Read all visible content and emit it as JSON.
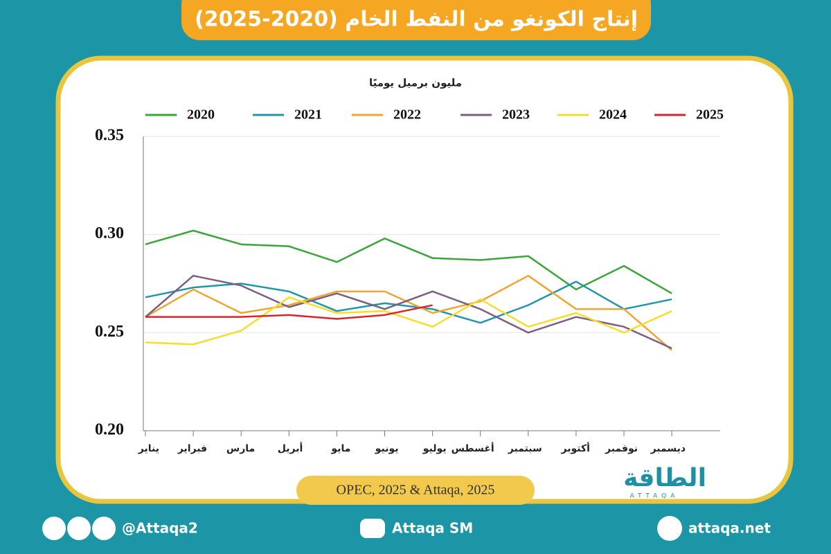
{
  "chart_data": {
    "type": "line",
    "title": "إنتاج الكونغو من النفط الخام (2020-2025)",
    "y_label": "مليون برميل يوميًا",
    "source": "OPEC, 2025 & Attaqa, 2025",
    "categories": [
      "يناير",
      "فبراير",
      "مارس",
      "أبريل",
      "مايو",
      "يونيو",
      "يوليو",
      "أغسطس",
      "سبتمبر",
      "أكتوبر",
      "نوفمبر",
      "ديسمبر"
    ],
    "series": [
      {
        "name": "2020",
        "color": "#3aa538",
        "values": [
          0.295,
          0.302,
          0.295,
          0.294,
          0.286,
          0.298,
          0.288,
          0.287,
          0.289,
          0.272,
          0.284,
          0.27
        ]
      },
      {
        "name": "2021",
        "color": "#2196a8",
        "values": [
          0.268,
          0.273,
          0.275,
          0.271,
          0.261,
          0.265,
          0.262,
          0.255,
          0.264,
          0.276,
          0.262,
          0.267
        ]
      },
      {
        "name": "2022",
        "color": "#f0a531",
        "values": [
          0.258,
          0.272,
          0.26,
          0.264,
          0.271,
          0.271,
          0.26,
          0.266,
          0.279,
          0.262,
          0.262,
          0.241
        ]
      },
      {
        "name": "2023",
        "color": "#7a5f85",
        "values": [
          0.258,
          0.279,
          0.274,
          0.263,
          0.27,
          0.262,
          0.271,
          0.262,
          0.25,
          0.258,
          0.253,
          0.242
        ]
      },
      {
        "name": "2024",
        "color": "#f7dc2c",
        "values": [
          0.245,
          0.244,
          0.251,
          0.268,
          0.26,
          0.261,
          0.253,
          0.267,
          0.253,
          0.26,
          0.25,
          0.261
        ]
      },
      {
        "name": "2025",
        "color": "#d7262b",
        "values": [
          0.258,
          0.258,
          0.258,
          0.259,
          0.257,
          0.259,
          0.264,
          null,
          null,
          null,
          null,
          null
        ]
      }
    ],
    "ylim": [
      0.2,
      0.35
    ],
    "yticks": [
      {
        "value": 0.2,
        "label": "0.20"
      },
      0.25,
      {
        "value": 0.3,
        "label": "0.30"
      },
      0.35
    ],
    "grid": true
  },
  "logo": {
    "name": "الطاقة",
    "latin": "ATTAQA"
  },
  "footer": {
    "handle": "@Attaqa2",
    "youtube": "Attaqa SM",
    "website": "attaqa.net"
  }
}
